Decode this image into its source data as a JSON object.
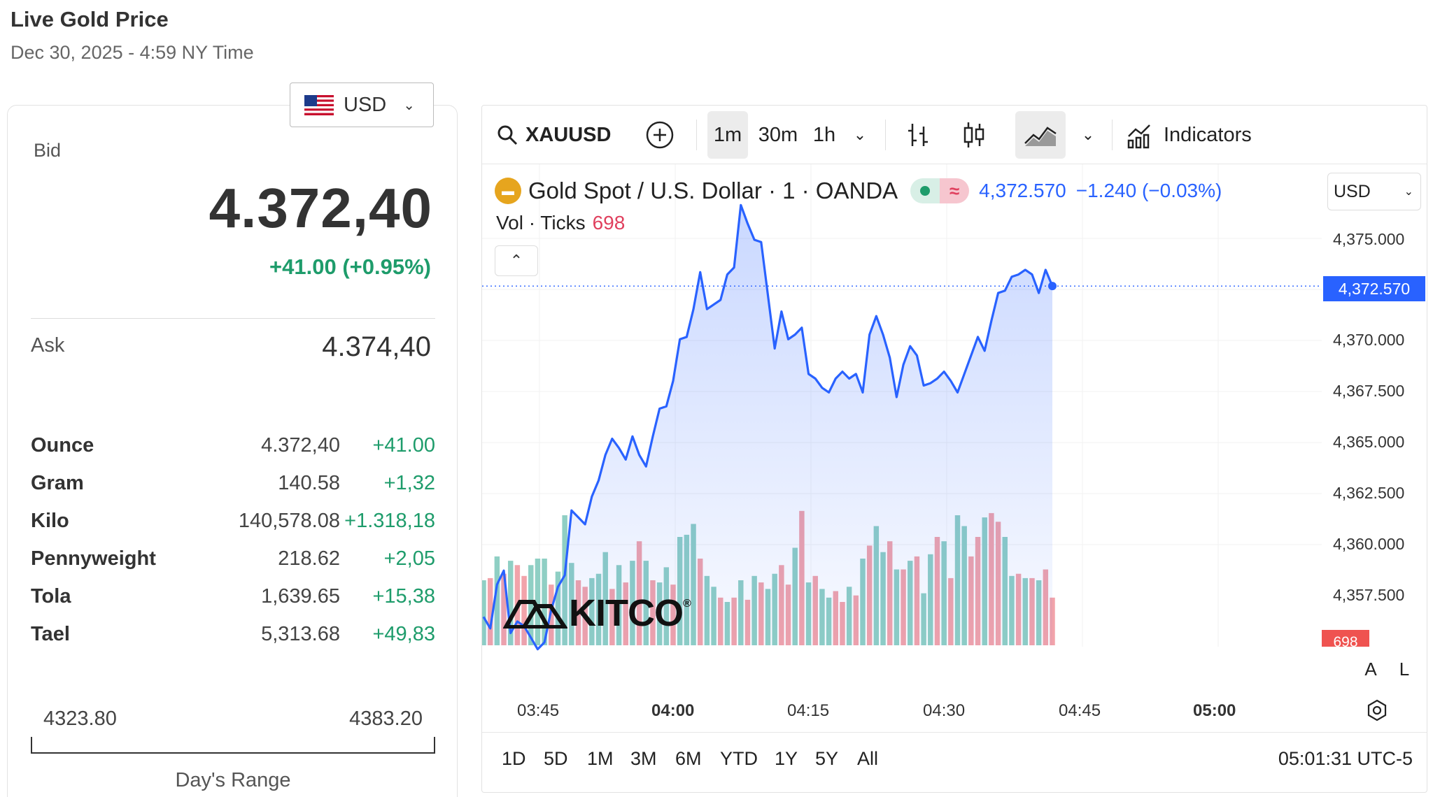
{
  "header": {
    "title": "Live Gold Price",
    "subtitle": "Dec 30, 2025 - 4:59 NY Time"
  },
  "currency": {
    "selected": "USD"
  },
  "quote": {
    "bid_label": "Bid",
    "bid": "4.372,40",
    "change": "+41.00 (+0.95%)",
    "ask_label": "Ask",
    "ask": "4.374,40"
  },
  "units": [
    {
      "name": "Ounce",
      "price": "4.372,40",
      "change": "+41.00"
    },
    {
      "name": "Gram",
      "price": "140.58",
      "change": "+1,32"
    },
    {
      "name": "Kilo",
      "price": "140,578.08",
      "change": "+1.318,18"
    },
    {
      "name": "Pennyweight",
      "price": "218.62",
      "change": "+2,05"
    },
    {
      "name": "Tola",
      "price": "1,639.65",
      "change": "+15,38"
    },
    {
      "name": "Tael",
      "price": "5,313.68",
      "change": "+49,83"
    }
  ],
  "day_range": {
    "low": "4323.80",
    "high": "4383.20",
    "label": "Day's Range"
  },
  "toolbar": {
    "symbol": "XAUUSD",
    "intervals": [
      "1m",
      "30m",
      "1h"
    ],
    "active_interval": "1m",
    "indicators_label": "Indicators",
    "icons": [
      "search-icon",
      "plus-circle-icon",
      "bars-icon",
      "candles-icon",
      "area-chart-icon",
      "indicators-icon"
    ]
  },
  "legend": {
    "instrument": "Gold Spot / U.S. Dollar · 1 · OANDA",
    "price": "4,372.570",
    "change": "−1.240 (−0.03%)",
    "vol_label": "Vol · Ticks",
    "vol_value": "698",
    "currency": "USD"
  },
  "axis": {
    "price_ticks": [
      "4,375.000",
      "4,370.000",
      "4,367.500",
      "4,365.000",
      "4,362.500",
      "4,360.000",
      "4,357.500"
    ],
    "price_tag": "4,372.570",
    "vol_tag": "698",
    "time_ticks": [
      {
        "label": "03:45",
        "bold": false
      },
      {
        "label": "04:00",
        "bold": true
      },
      {
        "label": "04:15",
        "bold": false
      },
      {
        "label": "04:30",
        "bold": false
      },
      {
        "label": "04:45",
        "bold": false
      },
      {
        "label": "05:00",
        "bold": true
      }
    ],
    "scale_a": "A",
    "scale_l": "L"
  },
  "ranges": [
    "1D",
    "5D",
    "1M",
    "3M",
    "6M",
    "YTD",
    "1Y",
    "5Y",
    "All"
  ],
  "clock": "05:01:31 UTC-5",
  "watermark": "KITCO",
  "colors": {
    "line": "#2962ff",
    "up": "#1e9c6b",
    "down": "#ef5350",
    "vol_up": "#8fcfc4",
    "vol_down": "#f2a3aa"
  },
  "chart_data": {
    "type": "area",
    "y_range": [
      4356.5,
      4377.5
    ],
    "price": [
      4358.3,
      4357.8,
      4359.7,
      4360.3,
      4357.6,
      4358.1,
      4357.9,
      4357.4,
      4356.9,
      4357.2,
      4358.6,
      4359.6,
      4360.1,
      4362.9,
      4362.6,
      4362.3,
      4363.5,
      4364.2,
      4365.3,
      4366.0,
      4365.6,
      4365.1,
      4366.1,
      4365.3,
      4364.8,
      4366.1,
      4367.3,
      4367.4,
      4368.5,
      4370.3,
      4370.4,
      4371.6,
      4373.2,
      4371.6,
      4371.8,
      4372.0,
      4373.1,
      4373.4,
      4376.1,
      4375.3,
      4374.6,
      4374.5,
      4372.2,
      4369.9,
      4371.5,
      4370.3,
      4370.5,
      4370.8,
      4368.8,
      4368.6,
      4368.2,
      4368.0,
      4368.6,
      4368.9,
      4368.6,
      4368.8,
      4368.0,
      4370.5,
      4371.3,
      4370.5,
      4369.5,
      4367.8,
      4369.2,
      4370.0,
      4369.6,
      4368.3,
      4368.4,
      4368.6,
      4368.9,
      4368.5,
      4368.0,
      4368.8,
      4369.6,
      4370.4,
      4369.8,
      4371.1,
      4372.3,
      4372.4,
      4373.0,
      4373.1,
      4373.3,
      4373.1,
      4372.3,
      4373.3,
      4372.6
    ],
    "volume_up": [
      true,
      false,
      true,
      false,
      true,
      false,
      false,
      true,
      true,
      true,
      false,
      true,
      true,
      true,
      false,
      false,
      true,
      true,
      true,
      false,
      true,
      false,
      true,
      false,
      true,
      false,
      true,
      true,
      false,
      true,
      true,
      true,
      false,
      true,
      true,
      false,
      true,
      false,
      true,
      false,
      true,
      false,
      true,
      true,
      false,
      false,
      true,
      false,
      true,
      false,
      true,
      true,
      false,
      false,
      true,
      false,
      true,
      false,
      true,
      true,
      false,
      true,
      false,
      true,
      false,
      true,
      true,
      false,
      true,
      false,
      true,
      true,
      false,
      false,
      true,
      false,
      false,
      true,
      true,
      false,
      true,
      false,
      true,
      false,
      false
    ],
    "volume": [
      60,
      62,
      82,
      66,
      78,
      74,
      64,
      74,
      80,
      80,
      56,
      68,
      120,
      76,
      60,
      54,
      62,
      66,
      86,
      52,
      74,
      58,
      78,
      96,
      78,
      60,
      58,
      72,
      56,
      100,
      102,
      112,
      80,
      64,
      54,
      44,
      40,
      44,
      60,
      42,
      64,
      58,
      52,
      66,
      74,
      56,
      90,
      124,
      58,
      64,
      52,
      44,
      50,
      40,
      54,
      46,
      80,
      92,
      110,
      86,
      96,
      70,
      70,
      78,
      82,
      48,
      84,
      100,
      96,
      62,
      120,
      110,
      82,
      100,
      118,
      122,
      114,
      100,
      64,
      66,
      62,
      62,
      60,
      70,
      44
    ]
  }
}
